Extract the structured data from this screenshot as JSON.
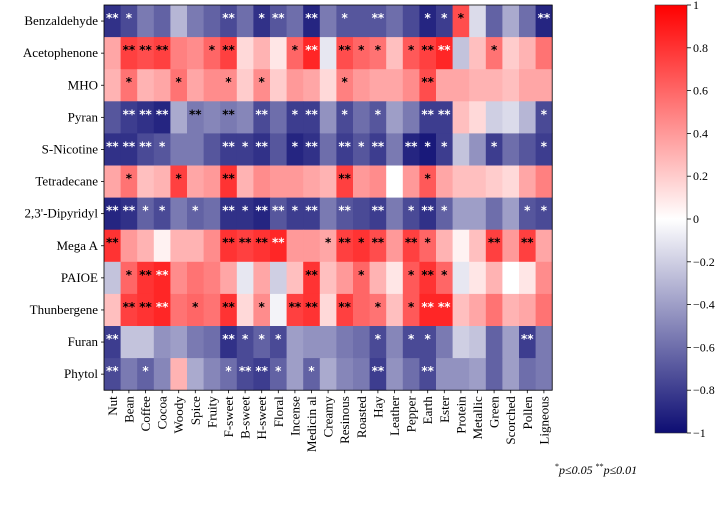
{
  "chart_data": {
    "type": "heatmap",
    "title": "",
    "rows": [
      "Benzaldehyde",
      "Acetophenone",
      "MHO",
      "Pyran",
      "S-Nicotine",
      "Tetradecane",
      "2,3'-Dipyridyl",
      "Mega A",
      "PAIOE",
      "Thunbergene",
      "Furan",
      "Phytol"
    ],
    "columns": [
      "Nut",
      "Bean",
      "Coffee",
      "Cocoa",
      "Woody",
      "Spice",
      "Fruity",
      "F-sweet",
      "B-sweet",
      "H-sweet",
      "Floral",
      "Incense",
      "Medicin al",
      "Creamy",
      "Resinous",
      "Roasted",
      "Hay",
      "Leather",
      "Pepper",
      "Earth",
      "Ester",
      "Protein",
      "Metallic",
      "Green",
      "Scorched",
      "Pollen",
      "Ligneous"
    ],
    "values": [
      [
        -0.85,
        -0.75,
        -0.55,
        -0.65,
        -0.3,
        -0.55,
        -0.65,
        -0.75,
        -0.6,
        -0.85,
        -0.7,
        -0.6,
        -0.9,
        -0.55,
        -0.7,
        -0.7,
        -0.7,
        -0.6,
        -0.75,
        -0.9,
        -0.8,
        0.7,
        -0.15,
        -0.65,
        -0.35,
        -0.6,
        -0.9
      ],
      [
        0.35,
        0.75,
        0.7,
        0.75,
        0.5,
        0.45,
        0.6,
        0.75,
        0.15,
        0.3,
        0.1,
        0.6,
        0.85,
        -0.1,
        0.7,
        0.6,
        0.55,
        0.25,
        0.65,
        0.75,
        0.85,
        -0.25,
        0.25,
        0.55,
        0.2,
        0.3,
        0.55
      ],
      [
        0.3,
        0.55,
        0.3,
        0.35,
        0.55,
        0.35,
        0.45,
        0.45,
        0.2,
        0.45,
        0.2,
        0.4,
        0.35,
        0.15,
        0.5,
        0.4,
        0.35,
        0.35,
        0.45,
        0.7,
        0.35,
        0.35,
        0.3,
        0.3,
        0.25,
        0.35,
        0.35
      ],
      [
        -0.7,
        -0.8,
        -0.85,
        -0.9,
        -0.35,
        -0.55,
        -0.5,
        -0.55,
        -0.5,
        -0.75,
        -0.6,
        -0.8,
        -0.8,
        -0.45,
        -0.75,
        -0.6,
        -0.7,
        -0.4,
        -0.55,
        -0.8,
        -0.8,
        0.25,
        0.15,
        -0.2,
        -0.15,
        -0.3,
        -0.75
      ],
      [
        -0.85,
        -0.85,
        -0.75,
        -0.7,
        -0.55,
        -0.55,
        -0.7,
        -0.8,
        -0.8,
        -0.85,
        -0.7,
        -0.9,
        -0.85,
        -0.6,
        -0.8,
        -0.7,
        -0.8,
        -0.55,
        -0.9,
        -0.95,
        -0.8,
        -0.25,
        -0.45,
        -0.8,
        -0.6,
        -0.7,
        -0.8
      ],
      [
        0.35,
        0.55,
        0.25,
        0.3,
        0.75,
        0.35,
        0.4,
        0.8,
        0.3,
        0.45,
        0.4,
        0.4,
        0.35,
        0.3,
        0.75,
        0.4,
        0.45,
        0.0,
        0.4,
        0.65,
        0.35,
        0.25,
        0.25,
        0.2,
        0.15,
        0.35,
        0.5
      ],
      [
        -0.9,
        -0.85,
        -0.65,
        -0.75,
        -0.55,
        -0.65,
        -0.6,
        -0.85,
        -0.85,
        -0.9,
        -0.7,
        -0.8,
        -0.8,
        -0.55,
        -0.7,
        -0.75,
        -0.8,
        -0.55,
        -0.75,
        -0.85,
        -0.65,
        -0.4,
        -0.4,
        -0.6,
        -0.4,
        -0.7,
        -0.75
      ],
      [
        0.8,
        0.4,
        0.3,
        0.05,
        0.3,
        0.3,
        0.45,
        0.8,
        0.75,
        0.8,
        0.85,
        0.4,
        0.4,
        0.35,
        0.75,
        0.8,
        0.7,
        0.4,
        0.75,
        0.6,
        0.3,
        0.05,
        0.25,
        0.75,
        0.4,
        0.75,
        0.35
      ],
      [
        -0.25,
        0.6,
        0.8,
        0.85,
        0.45,
        0.55,
        0.5,
        0.35,
        -0.1,
        0.35,
        -0.2,
        0.25,
        0.8,
        0.25,
        0.4,
        0.6,
        0.3,
        0.1,
        0.65,
        0.8,
        0.6,
        -0.1,
        0.1,
        0.3,
        0.0,
        0.1,
        0.45
      ],
      [
        0.25,
        0.75,
        0.8,
        0.85,
        0.55,
        0.6,
        0.55,
        0.8,
        0.15,
        0.45,
        -0.05,
        0.75,
        0.8,
        0.15,
        0.75,
        0.6,
        0.55,
        0.25,
        0.65,
        0.85,
        0.85,
        0.25,
        0.35,
        0.55,
        0.3,
        0.35,
        0.55
      ],
      [
        -0.8,
        -0.25,
        -0.25,
        -0.45,
        -0.4,
        -0.55,
        -0.6,
        -0.85,
        -0.75,
        -0.65,
        -0.75,
        -0.4,
        -0.45,
        -0.45,
        -0.55,
        -0.6,
        -0.75,
        -0.5,
        -0.75,
        -0.75,
        -0.55,
        -0.2,
        -0.25,
        -0.65,
        -0.4,
        -0.8,
        -0.55
      ],
      [
        -0.75,
        -0.55,
        -0.65,
        -0.5,
        0.3,
        -0.35,
        -0.5,
        -0.6,
        -0.75,
        -0.8,
        -0.65,
        -0.4,
        -0.65,
        -0.35,
        -0.5,
        -0.55,
        -0.8,
        -0.45,
        -0.6,
        -0.75,
        -0.45,
        -0.45,
        -0.4,
        -0.65,
        -0.4,
        -0.6,
        -0.55
      ]
    ],
    "significance": [
      [
        "**",
        "*",
        "",
        "",
        "",
        "",
        "",
        "**",
        "",
        "*",
        "**",
        "",
        "**",
        "",
        "*",
        "",
        "**",
        "",
        "",
        "*",
        "*",
        "*",
        "",
        "",
        "",
        "",
        "**"
      ],
      [
        "",
        "**",
        "**",
        "**",
        "",
        "",
        "*",
        "**",
        "",
        "",
        "",
        "*",
        "**",
        "",
        "**",
        "*",
        "*",
        "",
        "*",
        "**",
        "**",
        "",
        "",
        "*",
        "",
        "",
        ""
      ],
      [
        "",
        "*",
        "",
        "",
        "*",
        "",
        "",
        "*",
        "",
        "*",
        "",
        "",
        "",
        "",
        "*",
        "",
        "",
        "",
        "",
        "**",
        "",
        "",
        "",
        "",
        "",
        "",
        ""
      ],
      [
        "",
        "**",
        "**",
        "**",
        "",
        "**",
        "",
        "**",
        "",
        "**",
        "",
        "*",
        "**",
        "",
        "*",
        "",
        "*",
        "",
        "",
        "**",
        "**",
        "",
        "",
        "",
        "",
        "",
        "*"
      ],
      [
        "**",
        "**",
        "**",
        "*",
        "",
        "",
        "",
        "**",
        "*",
        "**",
        "",
        "*",
        "**",
        "",
        "**",
        "*",
        "**",
        "",
        "**",
        "*",
        "*",
        "",
        "",
        "*",
        "",
        "",
        "*"
      ],
      [
        "",
        "*",
        "",
        "",
        "*",
        "",
        "",
        "**",
        "",
        "",
        "",
        "",
        "",
        "",
        "**",
        "",
        "",
        "",
        "",
        "*",
        "",
        "",
        "",
        "",
        "",
        "",
        ""
      ],
      [
        "**",
        "**",
        "*",
        "*",
        "",
        "*",
        "",
        "**",
        "*",
        "**",
        "**",
        "*",
        "**",
        "",
        "**",
        "",
        "**",
        "",
        "*",
        "**",
        "*",
        "",
        "",
        "",
        "",
        "*",
        "*"
      ],
      [
        "**",
        "",
        "",
        "",
        "",
        "",
        "",
        "**",
        "**",
        "**",
        "**",
        "",
        "",
        "*",
        "**",
        "*",
        "**",
        "",
        "**",
        "*",
        "",
        "",
        "",
        "**",
        "",
        "**",
        ""
      ],
      [
        "",
        "*",
        "**",
        "**",
        "",
        "",
        "",
        "",
        "",
        "",
        "",
        "",
        "**",
        "",
        "",
        "*",
        "",
        "",
        "*",
        "**",
        "*",
        "",
        "",
        "",
        "",
        "",
        ""
      ],
      [
        "",
        "**",
        "**",
        "**",
        "",
        "*",
        "",
        "**",
        "",
        "*",
        "",
        "**",
        "**",
        "",
        "**",
        "",
        "*",
        "",
        "*",
        "**",
        "**",
        "",
        "",
        "",
        "",
        "",
        ""
      ],
      [
        "**",
        "",
        "",
        "",
        "",
        "",
        "",
        "**",
        "*",
        "*",
        "*",
        "",
        "",
        "",
        "",
        "",
        "*",
        "",
        "*",
        "*",
        "",
        "",
        "",
        "",
        "",
        "**",
        ""
      ],
      [
        "**",
        "",
        "*",
        "",
        "",
        "",
        "",
        "*",
        "**",
        "**",
        "*",
        "",
        "*",
        "",
        "",
        "",
        "**",
        "",
        "",
        "**",
        "",
        "",
        "",
        "",
        "",
        "",
        ""
      ]
    ],
    "colorbar": {
      "min": -1,
      "max": 1,
      "ticks": [
        "1",
        "0.8",
        "0.6",
        "0.4",
        "0.2",
        "0",
        "−0.2",
        "−0.4",
        "−0.6",
        "−0.8",
        "−1"
      ]
    },
    "colors": {
      "negative": "#0d0d73",
      "zero": "#ffffff",
      "positive": "#ff0000"
    },
    "footnote": {
      "p1_mark": "*",
      "p1_text": "p≤0.05",
      "p2_mark": "**",
      "p2_text": "p≤0.01"
    }
  }
}
